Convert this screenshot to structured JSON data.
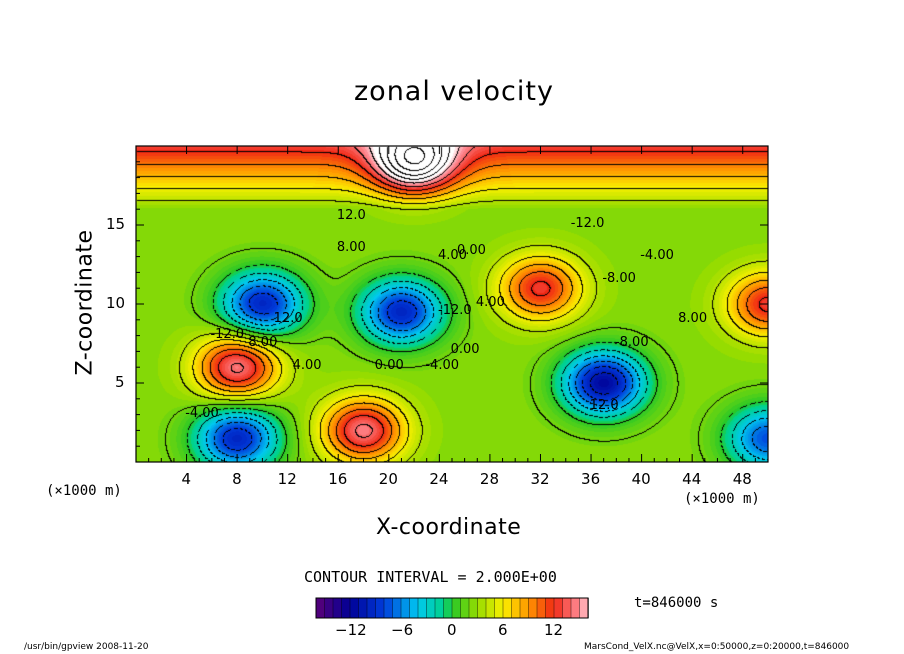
{
  "chart_data": {
    "type": "heatmap",
    "title": "zonal velocity",
    "xlabel": "X-coordinate",
    "ylabel": "Z-coordinate",
    "x_unit": "(×1000 m)",
    "y_unit": "(×1000 m)",
    "xlim": [
      0,
      50
    ],
    "ylim": [
      0,
      20
    ],
    "x_ticks": [
      "4",
      "8",
      "12",
      "16",
      "20",
      "24",
      "28",
      "32",
      "36",
      "40",
      "44",
      "48"
    ],
    "y_ticks": [
      "5",
      "10",
      "15"
    ],
    "contour_interval_label": "CONTOUR INTERVAL = 2.000E+00",
    "time_label": "t=846000 s",
    "colorbar": {
      "range": [
        -16,
        16
      ],
      "ticks": [
        "−12",
        "−6",
        "0",
        "6",
        "12"
      ],
      "colormap": "blue-cyan-green-yellow-red"
    },
    "contour_labels": [
      "12.0",
      "-12.0",
      "8.00",
      "4.00",
      "0.00",
      "-4.00",
      "-8.00"
    ],
    "footer_left": "/usr/bin/gpview   2008-11-20",
    "footer_right": "MarsCond_VelX.nc@VelX,x=0:50000,z=0:20000,t=846000",
    "features": [
      {
        "x": 18,
        "z": 2,
        "u": 12
      },
      {
        "x": 22,
        "z": 19,
        "u": 14
      },
      {
        "x": 10,
        "z": 10,
        "u": -12
      },
      {
        "x": 21,
        "z": 9.5,
        "u": -12
      },
      {
        "x": 37,
        "z": 5,
        "u": -14
      },
      {
        "x": 8,
        "z": 6,
        "u": 12
      },
      {
        "x": 32,
        "z": 11,
        "u": 10
      },
      {
        "x": 50,
        "z": 10,
        "u": 10
      },
      {
        "x": 8,
        "z": 1.5,
        "u": -12
      },
      {
        "x": 50,
        "z": 1.5,
        "u": -10
      }
    ]
  }
}
